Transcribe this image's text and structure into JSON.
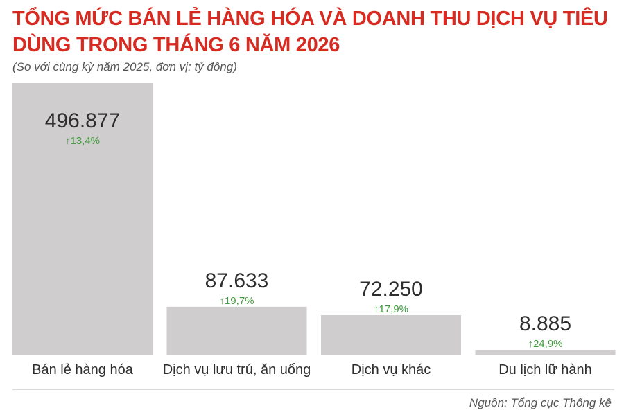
{
  "chart_data": {
    "type": "bar",
    "title": "TỔNG MỨC BÁN LẺ HÀNG HÓA VÀ DOANH THU DỊCH VỤ TIÊU DÙNG TRONG THÁNG 6 NĂM 2026",
    "subtitle": "(So với cùng kỳ năm 2025, đơn vị: tỷ đồng)",
    "categories": [
      "Bán lẻ hàng hóa",
      "Dịch vụ lưu trú, ăn uống",
      "Dịch vụ khác",
      "Du lịch lữ hành"
    ],
    "values": [
      496877,
      87633,
      72250,
      8885
    ],
    "value_labels": [
      "496.877",
      "87.633",
      "72.250",
      "8.885"
    ],
    "change_labels": [
      "13,4%",
      "19,7%",
      "17,9%",
      "24,9%"
    ],
    "change_direction": "up",
    "ylim": [
      0,
      496877
    ],
    "grid": false,
    "colors": {
      "bar": "#cfcdce",
      "title": "#d72a20",
      "change": "#3f9a3b"
    }
  },
  "source": "Nguồn: Tổng cục Thống kê"
}
